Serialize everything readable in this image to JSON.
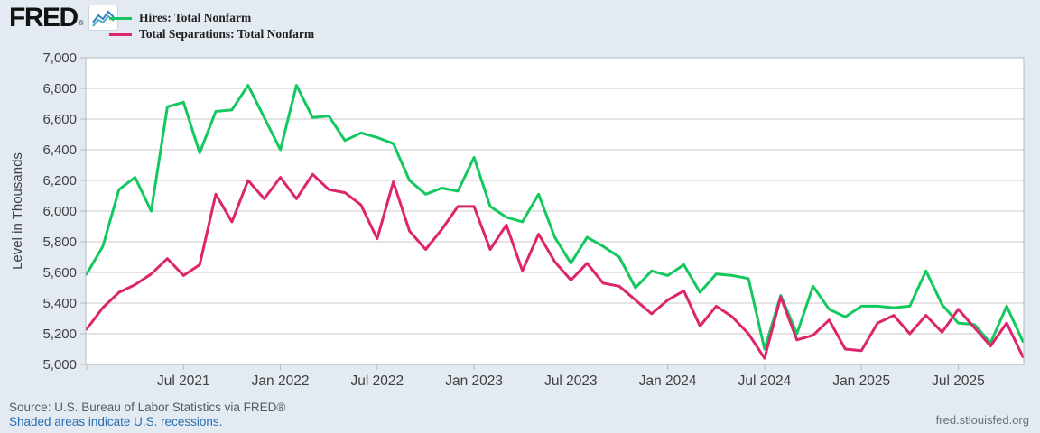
{
  "header": {
    "logo_text": "FRED",
    "logo_reg": "®",
    "logo_icon": "fred-squiggle-chart-icon",
    "legend": [
      {
        "label": "Hires: Total Nonfarm",
        "color": "#14c860",
        "slug": "hires"
      },
      {
        "label": "Total Separations: Total Nonfarm",
        "color": "#dc256b",
        "slug": "separations"
      }
    ]
  },
  "chart_data": {
    "type": "line",
    "title": "",
    "xlabel": "",
    "ylabel": "Level in Thousands",
    "ylim": [
      5000,
      7000
    ],
    "ytick_step": 200,
    "grid": true,
    "legend_position": "top-left",
    "plot_background": "#ffffff",
    "gridline_color": "#c9c9c9",
    "border_color": "#b3b9bf",
    "axis_text_color": "#404040",
    "ytick_labels": [
      "7,000",
      "6,800",
      "6,600",
      "6,400",
      "6,200",
      "6,000",
      "5,800",
      "5,600",
      "5,400",
      "5,200",
      "5,000"
    ],
    "xtick_labels": [
      "Jul 2021",
      "Jan 2022",
      "Jul 2022",
      "Jan 2023",
      "Jul 2023",
      "Jan 2024",
      "Jul 2024",
      "Jan 2025",
      "Jul 2025"
    ],
    "x": [
      "2021-01",
      "2021-02",
      "2021-03",
      "2021-04",
      "2021-05",
      "2021-06",
      "2021-07",
      "2021-08",
      "2021-09",
      "2021-10",
      "2021-11",
      "2021-12",
      "2022-01",
      "2022-02",
      "2022-03",
      "2022-04",
      "2022-05",
      "2022-06",
      "2022-07",
      "2022-08",
      "2022-09",
      "2022-10",
      "2022-11",
      "2022-12",
      "2023-01",
      "2023-02",
      "2023-03",
      "2023-04",
      "2023-05",
      "2023-06",
      "2023-07",
      "2023-08",
      "2023-09",
      "2023-10",
      "2023-11",
      "2023-12",
      "2024-01",
      "2024-02",
      "2024-03",
      "2024-04",
      "2024-05",
      "2024-06",
      "2024-07",
      "2024-08",
      "2024-09",
      "2024-10",
      "2024-11",
      "2024-12",
      "2025-01",
      "2025-02",
      "2025-03",
      "2025-04",
      "2025-05",
      "2025-06",
      "2025-07",
      "2025-08",
      "2025-09",
      "2025-10",
      "2025-11"
    ],
    "series": [
      {
        "name": "Hires: Total Nonfarm",
        "slug": "hires-line",
        "color": "#14c860",
        "values": [
          5590,
          5770,
          6140,
          6220,
          6000,
          6680,
          6710,
          6380,
          6650,
          6660,
          6820,
          6610,
          6400,
          6820,
          6610,
          6620,
          6460,
          6510,
          6480,
          6440,
          6200,
          6110,
          6150,
          6130,
          6350,
          6030,
          5960,
          5930,
          6110,
          5830,
          5660,
          5830,
          5770,
          5700,
          5500,
          5610,
          5580,
          5650,
          5470,
          5590,
          5580,
          5560,
          5100,
          5450,
          5200,
          5510,
          5360,
          5310,
          5380,
          5380,
          5370,
          5380,
          5610,
          5390,
          5270,
          5260,
          5140,
          5380,
          5150
        ]
      },
      {
        "name": "Total Separations: Total Nonfarm",
        "slug": "separations-line",
        "color": "#dc256b",
        "values": [
          5230,
          5370,
          5470,
          5520,
          5590,
          5690,
          5580,
          5650,
          6110,
          5930,
          6200,
          6080,
          6220,
          6080,
          6240,
          6140,
          6120,
          6040,
          5820,
          6190,
          5870,
          5750,
          5880,
          6030,
          6030,
          5750,
          5910,
          5610,
          5850,
          5670,
          5550,
          5660,
          5530,
          5510,
          5420,
          5330,
          5420,
          5480,
          5250,
          5380,
          5310,
          5200,
          5040,
          5440,
          5160,
          5190,
          5290,
          5100,
          5090,
          5270,
          5320,
          5200,
          5320,
          5210,
          5360,
          5240,
          5120,
          5270,
          5050
        ]
      }
    ]
  },
  "footer": {
    "source": "Source: U.S. Bureau of Labor Statistics via FRED®",
    "recession_note": "Shaded areas indicate U.S. recessions.",
    "site": "fred.stlouisfed.org"
  },
  "colors": {
    "page_background": "#e3eaf2",
    "link_blue": "#2a6fb0",
    "hires_green": "#14c860",
    "separations_pink": "#dc256b"
  }
}
